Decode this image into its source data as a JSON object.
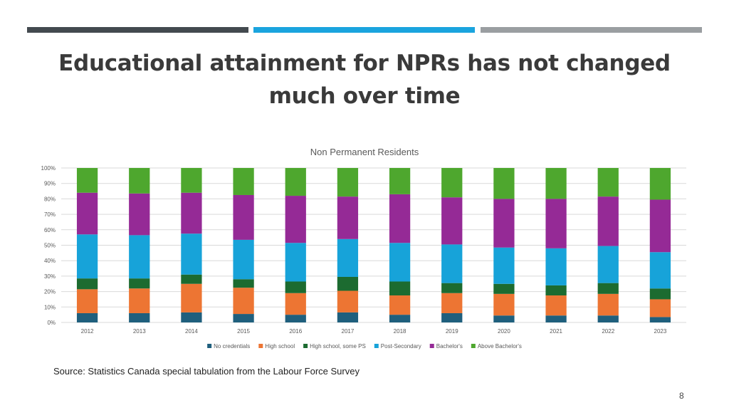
{
  "header": {
    "colors": {
      "left": "#434a4f",
      "middle": "#1aa4de",
      "right": "#9a9ea1"
    }
  },
  "slide": {
    "title": "Educational attainment for NPRs has not changed much over time",
    "source": "Source: Statistics Canada special tabulation from the Labour Force Survey",
    "page_number": "8"
  },
  "chart_data": {
    "type": "bar",
    "stacked": true,
    "title": "Non Permanent Residents",
    "categories": [
      "2012",
      "2013",
      "2014",
      "2015",
      "2016",
      "2017",
      "2018",
      "2019",
      "2020",
      "2021",
      "2022",
      "2023"
    ],
    "yticks": [
      "0%",
      "10%",
      "20%",
      "30%",
      "40%",
      "50%",
      "60%",
      "70%",
      "80%",
      "90%",
      "100%"
    ],
    "ylim": [
      0,
      100
    ],
    "grid": true,
    "legend_position": "bottom",
    "series": [
      {
        "name": "No credentials",
        "color": "#1f5f7d",
        "values": [
          6,
          6,
          6.5,
          5.5,
          5,
          6.5,
          5,
          6,
          4.5,
          4.5,
          4.5,
          3.5
        ]
      },
      {
        "name": "High school",
        "color": "#ed7533",
        "values": [
          15.5,
          16,
          18.5,
          17,
          14,
          14,
          12.5,
          13,
          14,
          13,
          14,
          11.5
        ]
      },
      {
        "name": "High school, some PS",
        "color": "#1c6b30",
        "values": [
          7,
          6.5,
          6,
          5.5,
          7.5,
          9,
          9,
          6.5,
          6.5,
          6.5,
          7,
          7
        ]
      },
      {
        "name": "Post-Secondary",
        "color": "#17a3d9",
        "values": [
          28.5,
          28,
          26.5,
          25.5,
          25,
          24.5,
          25,
          25,
          23.5,
          24,
          24,
          23.5
        ]
      },
      {
        "name": "Bachelor's",
        "color": "#952a96",
        "values": [
          27,
          27,
          26.5,
          29,
          30.5,
          27.5,
          31.5,
          30.5,
          31.5,
          32,
          32,
          34
        ]
      },
      {
        "name": "Above Bachelor's",
        "color": "#4ea72e",
        "values": [
          16,
          16.5,
          16,
          17.5,
          18,
          18.5,
          17,
          19,
          20,
          20,
          18.5,
          20.5
        ]
      }
    ]
  }
}
